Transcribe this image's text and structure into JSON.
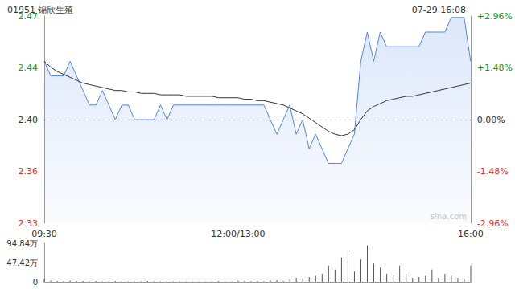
{
  "chart_data": [
    {
      "type": "line",
      "title": "01951 锦欣生殖",
      "subtitle": "07-29 16:08",
      "annotations": [
        "sina.com"
      ],
      "categories": [
        "09:30",
        null,
        null,
        null,
        null,
        null,
        null,
        null,
        null,
        null,
        null,
        null,
        null,
        null,
        null,
        null,
        null,
        null,
        null,
        null,
        null,
        null,
        null,
        null,
        null,
        null,
        null,
        null,
        null,
        null,
        "12:00/13:00",
        null,
        null,
        null,
        null,
        null,
        null,
        null,
        null,
        null,
        null,
        null,
        null,
        null,
        null,
        null,
        null,
        null,
        null,
        null,
        null,
        null,
        null,
        null,
        null,
        null,
        null,
        null,
        null,
        null,
        null,
        null,
        null,
        null,
        null,
        null,
        "16:00"
      ],
      "series": [
        {
          "type": "area",
          "color": "#4f86e8",
          "values": [
            2.44,
            2.43,
            2.43,
            2.43,
            2.44,
            2.43,
            2.42,
            2.41,
            2.41,
            2.42,
            2.41,
            2.4,
            2.41,
            2.41,
            2.4,
            2.4,
            2.4,
            2.4,
            2.41,
            2.4,
            2.41,
            2.41,
            2.41,
            2.41,
            2.41,
            2.41,
            2.41,
            2.41,
            2.41,
            2.41,
            2.41,
            2.41,
            2.41,
            2.41,
            2.41,
            2.4,
            2.39,
            2.4,
            2.41,
            2.39,
            2.4,
            2.38,
            2.39,
            2.38,
            2.37,
            2.37,
            2.37,
            2.38,
            2.39,
            2.44,
            2.46,
            2.44,
            2.46,
            2.45,
            2.45,
            2.45,
            2.45,
            2.45,
            2.45,
            2.46,
            2.46,
            2.46,
            2.46,
            2.47,
            2.47,
            2.47,
            2.44
          ]
        },
        {
          "type": "line",
          "color": "#333333",
          "values": [
            2.44,
            2.436,
            2.433,
            2.431,
            2.429,
            2.427,
            2.425,
            2.424,
            2.423,
            2.422,
            2.421,
            2.42,
            2.42,
            2.419,
            2.419,
            2.418,
            2.418,
            2.418,
            2.417,
            2.417,
            2.417,
            2.417,
            2.416,
            2.416,
            2.416,
            2.416,
            2.416,
            2.415,
            2.415,
            2.415,
            2.415,
            2.414,
            2.414,
            2.413,
            2.413,
            2.412,
            2.411,
            2.41,
            2.408,
            2.406,
            2.404,
            2.401,
            2.398,
            2.395,
            2.392,
            2.39,
            2.389,
            2.39,
            2.393,
            2.4,
            2.406,
            2.409,
            2.411,
            2.413,
            2.414,
            2.415,
            2.416,
            2.416,
            2.417,
            2.418,
            2.419,
            2.42,
            2.421,
            2.422,
            2.423,
            2.424,
            2.425
          ]
        }
      ],
      "ylim": [
        2.329,
        2.471
      ],
      "yticks": [
        {
          "value": 2.329,
          "label": "2.33"
        },
        {
          "value": 2.3645,
          "label": "2.36"
        },
        {
          "value": 2.4,
          "label": "2.40"
        },
        {
          "value": 2.4355,
          "label": "2.44"
        },
        {
          "value": 2.471,
          "label": "2.47"
        }
      ],
      "y2lim": [
        -2.96,
        2.96
      ],
      "y2ticks": [
        {
          "value": -2.96,
          "label": "-2.96%"
        },
        {
          "value": -1.48,
          "label": "-1.48%"
        },
        {
          "value": 0,
          "label": "0.00%"
        },
        {
          "value": 1.48,
          "label": "+1.48%"
        },
        {
          "value": 2.96,
          "label": "+2.96%"
        }
      ],
      "grid": false
    },
    {
      "type": "bar",
      "color": "#555555",
      "values": [
        8,
        3,
        2,
        2,
        3,
        2,
        2,
        1,
        2,
        1,
        1,
        2,
        1,
        1,
        1,
        1,
        2,
        1,
        1,
        1,
        1,
        1,
        1,
        1,
        1,
        1,
        1,
        2,
        1,
        1,
        3,
        2,
        1,
        2,
        1,
        3,
        4,
        2,
        6,
        10,
        8,
        12,
        15,
        20,
        40,
        30,
        60,
        75,
        25,
        55,
        90,
        45,
        35,
        20,
        15,
        40,
        20,
        10,
        12,
        15,
        30,
        10,
        20,
        15,
        10,
        8,
        40
      ],
      "ylim": [
        0,
        94.84
      ],
      "yticks": [
        0,
        {
          "value": 47.42,
          "label": "47.42万"
        },
        {
          "value": 94.84,
          "label": "94.84万"
        }
      ],
      "tick_labels": "y",
      "grid": false
    }
  ]
}
